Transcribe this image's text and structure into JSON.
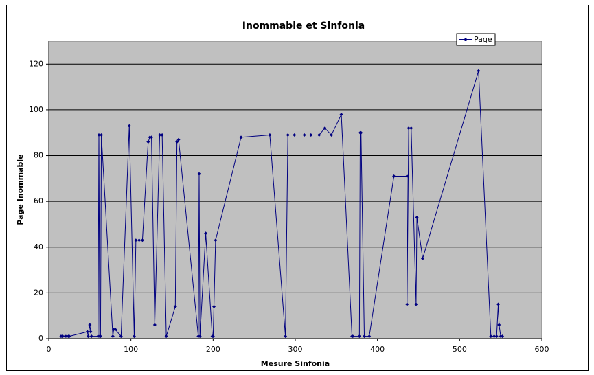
{
  "chart_data": {
    "type": "line",
    "title": "Inommable et Sinfonia",
    "x_label": "Mesure Sinfonia",
    "y_label": "Page Inommable",
    "series": [
      {
        "name": "Page",
        "color": "#000080",
        "x": [
          15,
          17,
          20,
          22,
          24,
          25,
          47,
          48,
          50,
          51,
          52,
          60,
          61,
          62,
          63,
          64,
          78,
          79,
          81,
          88,
          98,
          104,
          106,
          110,
          114,
          121,
          123,
          125,
          129,
          135,
          138,
          143,
          154,
          156,
          158,
          182,
          183,
          184,
          191,
          199,
          200,
          201,
          203,
          234,
          269,
          288,
          291,
          299,
          311,
          319,
          329,
          336,
          344,
          356,
          369,
          370,
          378,
          379,
          380,
          384,
          390,
          420,
          436,
          436,
          438,
          441,
          447,
          448,
          455,
          523,
          538,
          542,
          545,
          547,
          548,
          550,
          552
        ],
        "values": [
          1,
          1,
          1,
          1,
          1,
          1,
          3,
          1,
          6,
          3,
          1,
          1,
          89,
          1,
          1,
          89,
          1,
          4,
          4,
          1,
          93,
          1,
          43,
          43,
          43,
          86,
          88,
          88,
          6,
          89,
          89,
          1,
          14,
          86,
          87,
          1,
          72,
          1,
          46,
          1,
          1,
          14,
          43,
          88,
          89,
          1,
          89,
          89,
          89,
          89,
          89,
          92,
          89,
          98,
          1,
          1,
          1,
          90,
          90,
          1,
          1,
          71,
          71,
          15,
          92,
          92,
          15,
          53,
          35,
          117,
          1,
          1,
          1,
          15,
          6,
          1,
          1
        ]
      }
    ],
    "xlim": [
      0,
      600
    ],
    "xticks": [
      0,
      100,
      200,
      300,
      400,
      500,
      600
    ],
    "ylim": [
      0,
      130
    ],
    "yticks": [
      0,
      20,
      40,
      60,
      80,
      100,
      120
    ],
    "grid": true,
    "legend": "top-right"
  }
}
